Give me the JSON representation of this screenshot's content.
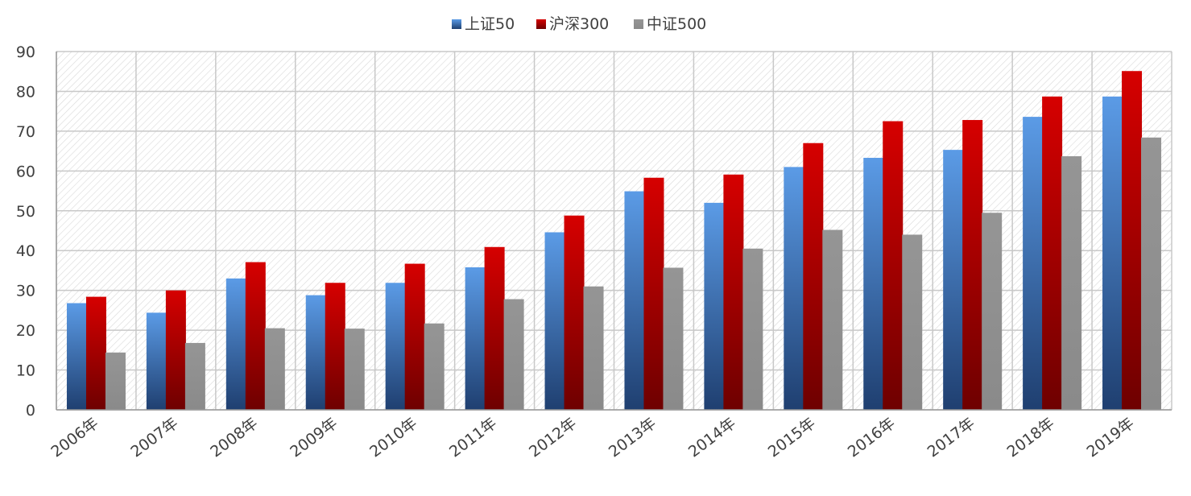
{
  "chart_data": {
    "type": "bar",
    "categories": [
      "2006年",
      "2007年",
      "2008年",
      "2009年",
      "2010年",
      "2011年",
      "2012年",
      "2013年",
      "2014年",
      "2015年",
      "2016年",
      "2017年",
      "2018年",
      "2019年"
    ],
    "series": [
      {
        "name": "上证50",
        "color": "#4472C4",
        "values": [
          26.8,
          24.4,
          33.0,
          28.8,
          31.9,
          35.8,
          44.6,
          54.9,
          52.0,
          61.0,
          63.3,
          65.3,
          73.6,
          78.7
        ]
      },
      {
        "name": "沪深300",
        "color": "#C00000",
        "values": [
          28.4,
          30.0,
          37.1,
          31.9,
          36.7,
          40.9,
          48.8,
          58.3,
          59.1,
          67.0,
          72.5,
          72.8,
          78.7,
          85.1
        ]
      },
      {
        "name": "中证500",
        "color": "#8C8C8C",
        "values": [
          14.4,
          16.8,
          20.5,
          20.4,
          21.7,
          27.8,
          31.0,
          35.7,
          40.5,
          45.2,
          44.0,
          49.5,
          63.7,
          68.4
        ]
      }
    ],
    "title": "",
    "xlabel": "",
    "ylabel": "",
    "ylim": [
      0,
      90
    ],
    "yticks": [
      0,
      10,
      20,
      30,
      40,
      50,
      60,
      70,
      80,
      90
    ],
    "grid": true,
    "legend_position": "top-center"
  }
}
